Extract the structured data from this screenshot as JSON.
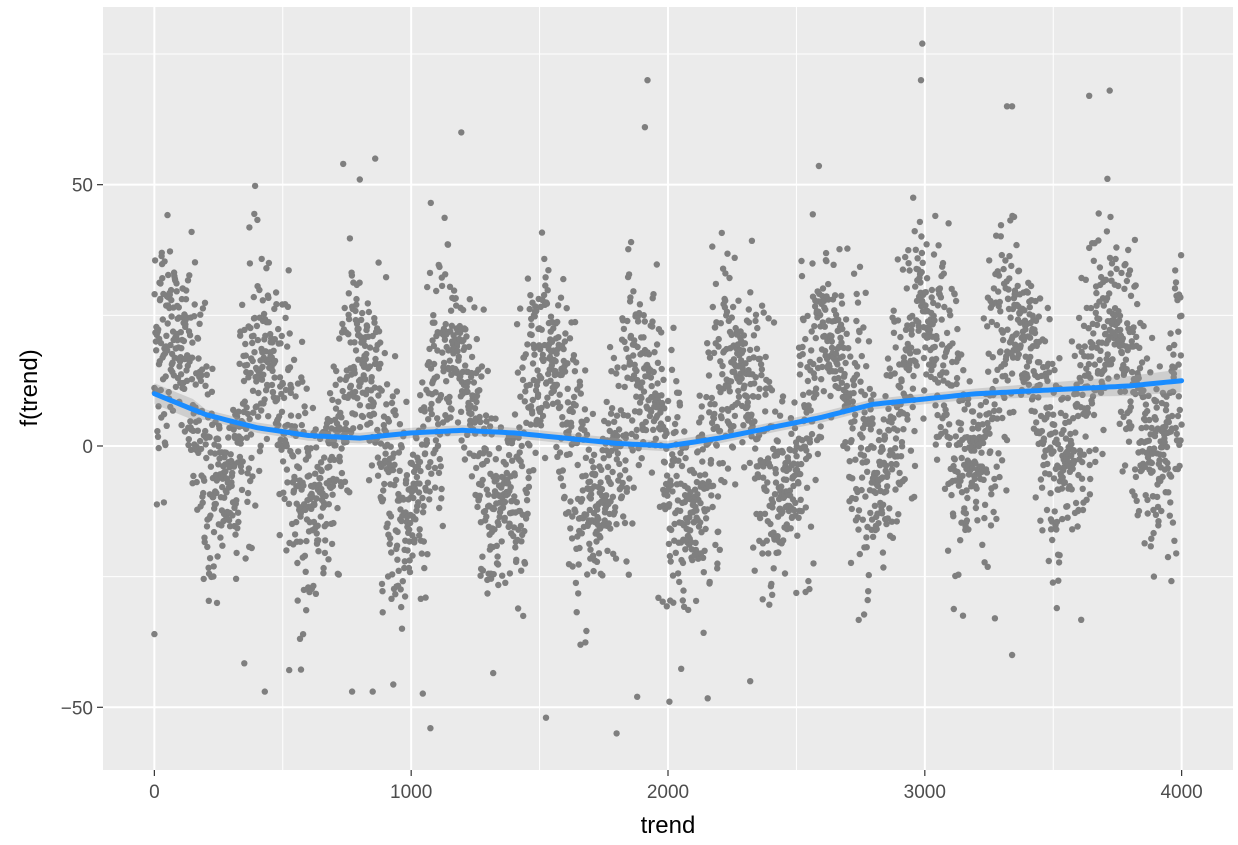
{
  "chart_data": {
    "type": "scatter",
    "xlabel": "trend",
    "ylabel": "f(trend)",
    "xlim": [
      -200,
      4200
    ],
    "ylim": [
      -62,
      84
    ],
    "x_ticks": [
      0,
      1000,
      2000,
      3000,
      4000
    ],
    "x_tick_labels": [
      "0",
      "1000",
      "2000",
      "3000",
      "4000"
    ],
    "y_ticks": [
      -50,
      0,
      50
    ],
    "y_tick_labels": [
      "−50",
      "0",
      "50"
    ],
    "grid": true,
    "panel_background": "#ebebeb",
    "grid_color": "#ffffff",
    "series": [
      {
        "type": "scatter",
        "color": "#7f7f7f",
        "x_range": [
          0,
          4000
        ],
        "n_points": 4000,
        "points_note": "dense cloud of grey points; values generated from trend curve plus seasonal spread",
        "outliers": [
          [
            1920,
            70
          ],
          [
            1910,
            61
          ],
          [
            1195,
            60
          ],
          [
            860,
            55
          ],
          [
            800,
            51
          ],
          [
            2990,
            77
          ],
          [
            2985,
            70
          ],
          [
            3320,
            65
          ],
          [
            3340,
            65
          ],
          [
            3640,
            67
          ],
          [
            3720,
            68
          ],
          [
            1800,
            -55
          ],
          [
            1075,
            -54
          ],
          [
            1525,
            -52
          ],
          [
            430,
            -47
          ],
          [
            770,
            -47
          ],
          [
            850,
            -47
          ],
          [
            1880,
            -48
          ],
          [
            2320,
            -45
          ],
          [
            0,
            -36
          ],
          [
            3340,
            -40
          ]
        ]
      },
      {
        "type": "line",
        "name": "",
        "color": "#1a8cff",
        "x": [
          0,
          200,
          400,
          600,
          800,
          1000,
          1200,
          1400,
          1600,
          1800,
          2000,
          2200,
          2400,
          2600,
          2800,
          3000,
          3200,
          3400,
          3600,
          3800,
          4000
        ],
        "y": [
          10.0,
          6.0,
          3.5,
          2.0,
          1.5,
          2.5,
          3.0,
          2.5,
          1.5,
          0.5,
          0.0,
          1.5,
          3.5,
          5.5,
          8.0,
          9.0,
          10.0,
          10.5,
          11.0,
          11.5,
          12.5
        ]
      }
    ]
  }
}
